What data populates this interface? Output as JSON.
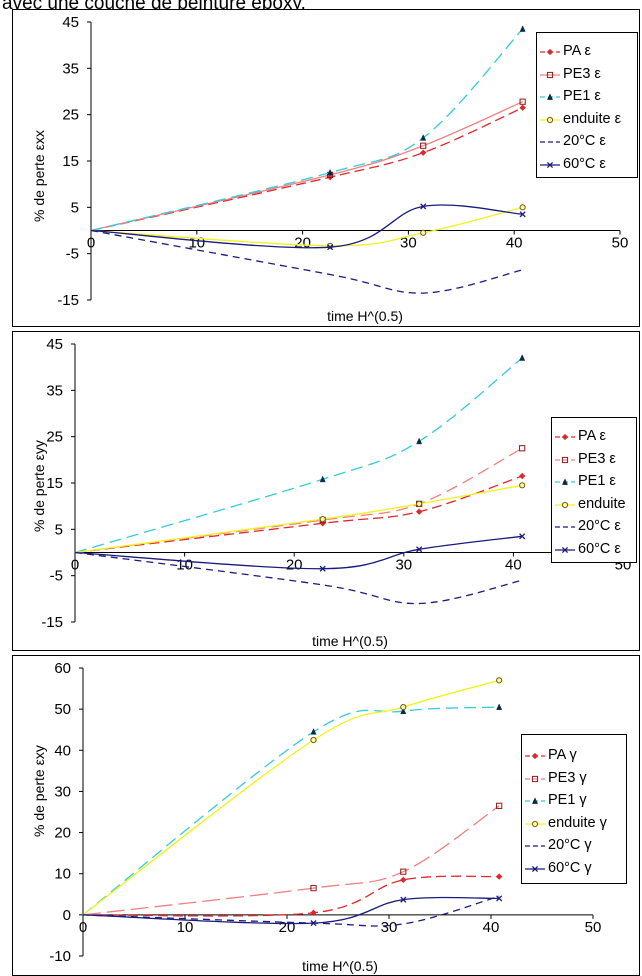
{
  "header": {
    "text": "avec une couche de peinture epoxy."
  },
  "chart_data": [
    {
      "type": "line",
      "title": "",
      "xlabel": "time H^(0.5)",
      "ylabel": "% de perte εxx",
      "xlim": [
        0,
        50
      ],
      "ylim": [
        -15,
        45
      ],
      "xticks": [
        0,
        10,
        20,
        30,
        40,
        50
      ],
      "yticks": [
        -15,
        -5,
        5,
        15,
        25,
        35,
        45
      ],
      "legend_position": "right",
      "series": [
        {
          "name": "PA ε",
          "color": "#e0262a",
          "dash": "10,5",
          "marker": "diamond",
          "x": [
            0,
            22.6,
            31.4,
            40.8
          ],
          "y": [
            0,
            11.5,
            16.8,
            26.5
          ]
        },
        {
          "name": "PE3  ε",
          "color": "#f08080",
          "dash": "",
          "marker": "square",
          "x": [
            0,
            22.6,
            31.4,
            40.8
          ],
          "y": [
            0,
            12,
            18.3,
            27.8
          ]
        },
        {
          "name": "PE1 ε",
          "color": "#33ccdd",
          "dash": "12,6",
          "marker": "triangle",
          "x": [
            0,
            22.6,
            31.4,
            40.8
          ],
          "y": [
            0,
            12.5,
            20,
            43.5
          ]
        },
        {
          "name": "enduite ε",
          "color": "#f2f21a",
          "dash": "",
          "marker": "circle",
          "x": [
            0,
            22.6,
            31.4,
            40.8
          ],
          "y": [
            0,
            -3.3,
            -0.5,
            5
          ]
        },
        {
          "name": "20°C ε",
          "color": "#1a1a80",
          "dash": "7,5",
          "marker": "none",
          "x": [
            0,
            22.6,
            31.4,
            40.8
          ],
          "y": [
            0,
            -9.5,
            -13.5,
            -8.5
          ]
        },
        {
          "name": "60°C ε",
          "color": "#1a1a80",
          "dash": "",
          "marker": "x",
          "x": [
            0,
            22.6,
            31.4,
            40.8
          ],
          "y": [
            0,
            -3.6,
            5.2,
            3.5
          ]
        }
      ]
    },
    {
      "type": "line",
      "title": "",
      "xlabel": "time H^(0.5)",
      "ylabel": "% de perte εyy",
      "xlim": [
        0,
        50
      ],
      "ylim": [
        -15,
        45
      ],
      "xticks": [
        0,
        10,
        20,
        30,
        40,
        50
      ],
      "yticks": [
        -15,
        -5,
        5,
        15,
        25,
        35,
        45
      ],
      "legend_position": "right",
      "series": [
        {
          "name": "PA ε",
          "color": "#e0262a",
          "dash": "10,5",
          "marker": "diamond",
          "x": [
            0,
            22.6,
            31.4,
            40.8
          ],
          "y": [
            0,
            6.3,
            8.8,
            16.5
          ]
        },
        {
          "name": "PE3  ε",
          "color": "#f08080",
          "dash": "12,6",
          "marker": "square",
          "x": [
            0,
            22.6,
            31.4,
            40.8
          ],
          "y": [
            0,
            7,
            10.5,
            22.5
          ]
        },
        {
          "name": "PE1 ε",
          "color": "#33ccdd",
          "dash": "12,6",
          "marker": "triangle",
          "x": [
            0,
            22.6,
            31.4,
            40.8
          ],
          "y": [
            0,
            15.8,
            24,
            42
          ]
        },
        {
          "name": "enduite",
          "color": "#f2f21a",
          "dash": "",
          "marker": "circle",
          "x": [
            0,
            22.6,
            31.4,
            40.8
          ],
          "y": [
            0,
            7.2,
            10.5,
            14.5
          ]
        },
        {
          "name": "20°C ε",
          "color": "#1a1a80",
          "dash": "7,5",
          "marker": "none",
          "x": [
            0,
            22.6,
            31.4,
            40.8
          ],
          "y": [
            0,
            -7,
            -11,
            -6
          ]
        },
        {
          "name": "60°C ε",
          "color": "#1a1a80",
          "dash": "",
          "marker": "x",
          "x": [
            0,
            22.6,
            31.4,
            40.8
          ],
          "y": [
            0,
            -3.5,
            0.7,
            3.5
          ]
        }
      ]
    },
    {
      "type": "line",
      "title": "",
      "xlabel": "time H^(0.5)",
      "ylabel": "% de perte εxy",
      "xlim": [
        0,
        50
      ],
      "ylim": [
        -10,
        60
      ],
      "xticks": [
        0,
        10,
        20,
        30,
        40,
        50
      ],
      "yticks": [
        -10,
        0,
        10,
        20,
        30,
        40,
        50,
        60
      ],
      "legend_position": "right",
      "series": [
        {
          "name": "PA γ",
          "color": "#e0262a",
          "dash": "10,5",
          "marker": "diamond",
          "x": [
            0,
            22.6,
            31.4,
            40.8
          ],
          "y": [
            0,
            0.5,
            8.5,
            9.3
          ]
        },
        {
          "name": "PE3  γ",
          "color": "#f08080",
          "dash": "18,6",
          "marker": "square",
          "x": [
            0,
            22.6,
            31.4,
            40.8
          ],
          "y": [
            0,
            6.5,
            10.5,
            26.5
          ]
        },
        {
          "name": "PE1 γ",
          "color": "#33ccdd",
          "dash": "12,6",
          "marker": "triangle",
          "x": [
            0,
            22.6,
            31.4,
            40.8
          ],
          "y": [
            0,
            44.5,
            49.5,
            50.5
          ]
        },
        {
          "name": "enduite γ",
          "color": "#f2f21a",
          "dash": "",
          "marker": "circle",
          "x": [
            0,
            22.6,
            31.4,
            40.8
          ],
          "y": [
            0,
            42.5,
            50.5,
            57
          ]
        },
        {
          "name": "20°C γ",
          "color": "#1a1a80",
          "dash": "7,5",
          "marker": "none",
          "x": [
            0,
            22.6,
            31.4,
            40.8
          ],
          "y": [
            0,
            -2,
            -2.2,
            4.5
          ]
        },
        {
          "name": "60°C γ",
          "color": "#1a1a80",
          "dash": "",
          "marker": "x",
          "x": [
            0,
            22.6,
            31.4,
            40.8
          ],
          "y": [
            0,
            -2,
            3.7,
            4
          ]
        }
      ]
    }
  ]
}
